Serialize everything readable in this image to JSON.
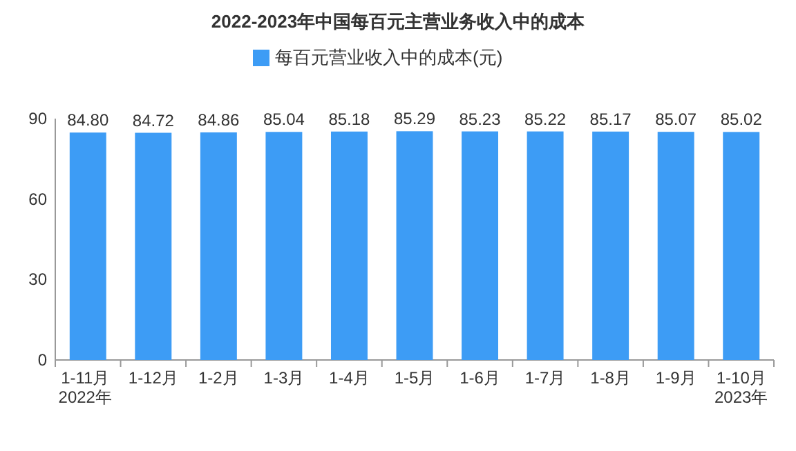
{
  "chart_data": {
    "type": "bar",
    "title": "2022-2023年中国每百元主营业务收入中的成本",
    "categories": [
      "1-11月\n2022年",
      "1-12月",
      "1-2月",
      "1-3月",
      "1-4月",
      "1-5月",
      "1-6月",
      "1-7月",
      "1-8月",
      "1-9月",
      "1-10月\n2023年"
    ],
    "series": [
      {
        "name": "每百元营业收入中的成本(元)",
        "color": "#3d9cf5",
        "values": [
          84.8,
          84.72,
          84.86,
          85.04,
          85.18,
          85.29,
          85.23,
          85.22,
          85.17,
          85.07,
          85.02
        ],
        "value_labels": [
          "84.80",
          "84.72",
          "84.86",
          "85.04",
          "85.18",
          "85.29",
          "85.23",
          "85.22",
          "85.17",
          "85.07",
          "85.02"
        ]
      }
    ],
    "ylim": [
      0,
      90
    ],
    "yticks": [
      0,
      30,
      60,
      90
    ],
    "legend": "top",
    "grid": false
  }
}
